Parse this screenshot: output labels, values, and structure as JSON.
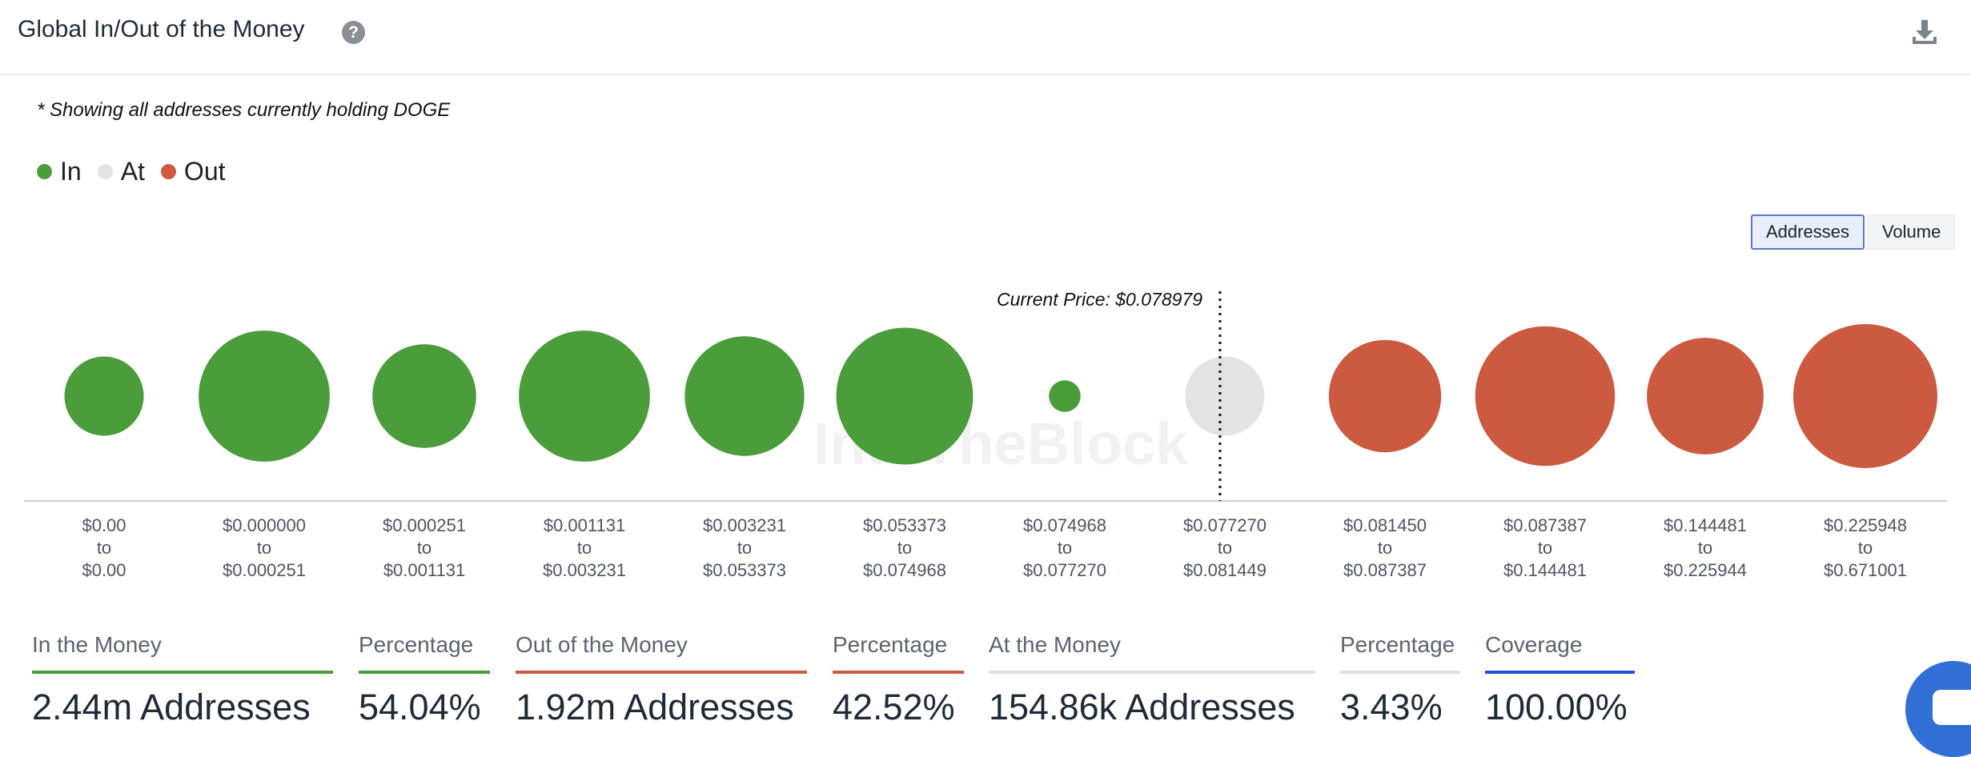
{
  "header": {
    "title": "Global In/Out of the Money",
    "help_glyph": "?"
  },
  "note": "* Showing all addresses currently holding DOGE",
  "legend": [
    {
      "label": "In",
      "color": "#4a9d3a"
    },
    {
      "label": "At",
      "color": "#e3e3e3"
    },
    {
      "label": "Out",
      "color": "#cc5a40"
    }
  ],
  "toggle": {
    "addresses_label": "Addresses",
    "volume_label": "Volume",
    "selected": "Addresses"
  },
  "chart_data": {
    "type": "bubble",
    "current_price_label": "Current Price: $0.078979",
    "current_price_after_index": 6,
    "watermark": "IntoTheBlock",
    "buckets": [
      {
        "range": [
          "$0.00",
          "$0.00"
        ],
        "status": "in",
        "relative_size": 0.55
      },
      {
        "range": [
          "$0.000000",
          "$0.000251"
        ],
        "status": "in",
        "relative_size": 0.91
      },
      {
        "range": [
          "$0.000251",
          "$0.001131"
        ],
        "status": "in",
        "relative_size": 0.72
      },
      {
        "range": [
          "$0.001131",
          "$0.003231"
        ],
        "status": "in",
        "relative_size": 0.91
      },
      {
        "range": [
          "$0.003231",
          "$0.053373"
        ],
        "status": "in",
        "relative_size": 0.83
      },
      {
        "range": [
          "$0.053373",
          "$0.074968"
        ],
        "status": "in",
        "relative_size": 0.95
      },
      {
        "range": [
          "$0.074968",
          "$0.077270"
        ],
        "status": "in",
        "relative_size": 0.22
      },
      {
        "range": [
          "$0.077270",
          "$0.081449"
        ],
        "status": "at",
        "relative_size": 0.55
      },
      {
        "range": [
          "$0.081450",
          "$0.087387"
        ],
        "status": "out",
        "relative_size": 0.78
      },
      {
        "range": [
          "$0.087387",
          "$0.144481"
        ],
        "status": "out",
        "relative_size": 0.97
      },
      {
        "range": [
          "$0.144481",
          "$0.225944"
        ],
        "status": "out",
        "relative_size": 0.81
      },
      {
        "range": [
          "$0.225948",
          "$0.671001"
        ],
        "status": "out",
        "relative_size": 1.0
      }
    ],
    "range_connector": "to"
  },
  "stats": [
    {
      "label": "In the Money",
      "value": "2.44m Addresses",
      "color": "#4a9d3a"
    },
    {
      "label": "Percentage",
      "value": "54.04%",
      "color": "#4a9d3a"
    },
    {
      "label": "Out of the Money",
      "value": "1.92m Addresses",
      "color": "#cc5a40"
    },
    {
      "label": "Percentage",
      "value": "42.52%",
      "color": "#cc5a40"
    },
    {
      "label": "At the Money",
      "value": "154.86k Addresses",
      "color": "#e0e0e0"
    },
    {
      "label": "Percentage",
      "value": "3.43%",
      "color": "#e0e0e0"
    },
    {
      "label": "Coverage",
      "value": "100.00%",
      "color": "#2452d6"
    }
  ],
  "icons": {
    "download": "download-icon",
    "help": "help-icon",
    "chat": "chat-icon"
  }
}
